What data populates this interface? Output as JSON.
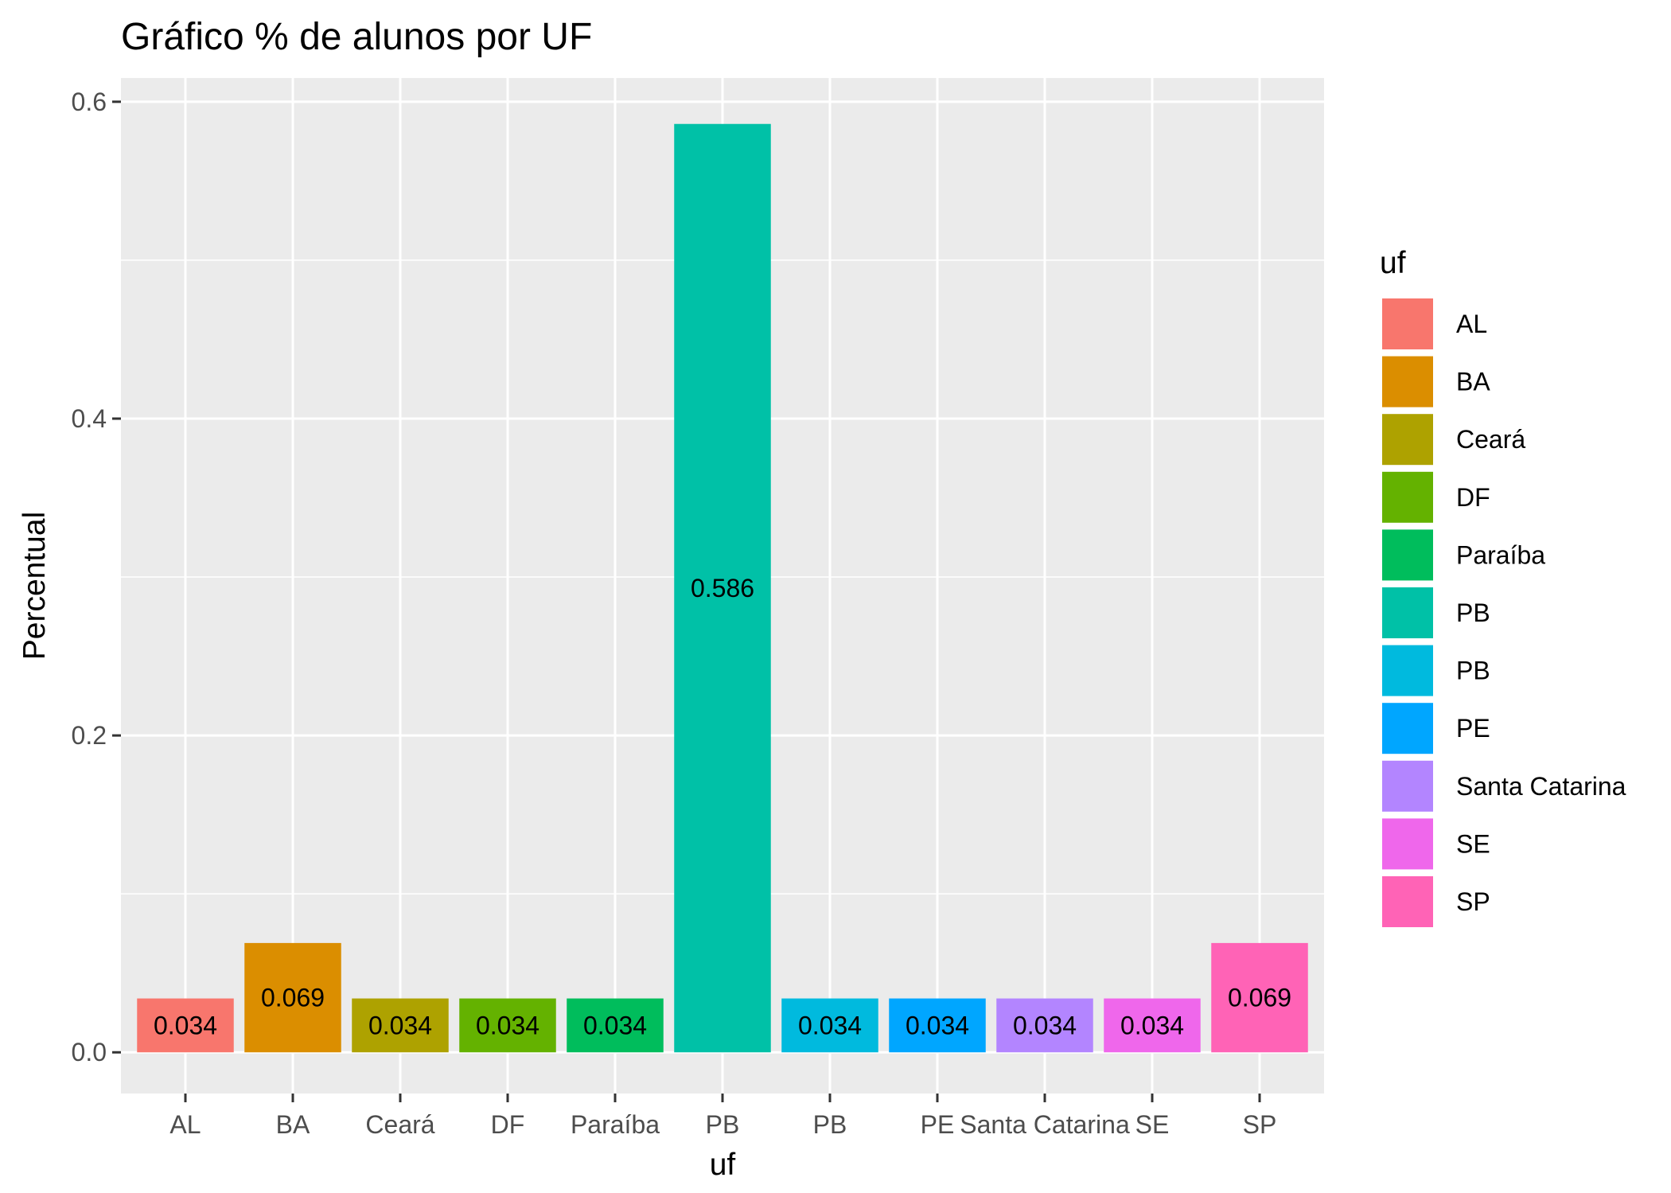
{
  "chart_data": {
    "type": "bar",
    "title": "Gráfico % de alunos por UF",
    "xlabel": "uf",
    "ylabel": "Percentual",
    "categories": [
      "AL",
      "BA",
      "Ceará",
      "DF",
      "Paraíba",
      "PB",
      "PB",
      "PE",
      "Santa Catarina",
      "SE",
      "SP"
    ],
    "values": [
      0.034,
      0.069,
      0.034,
      0.034,
      0.034,
      0.586,
      0.034,
      0.034,
      0.034,
      0.034,
      0.069
    ],
    "value_labels": [
      "0.034",
      "0.069",
      "0.034",
      "0.034",
      "0.034",
      "0.586",
      "0.034",
      "0.034",
      "0.034",
      "0.034",
      "0.069"
    ],
    "colors": [
      "#F8766D",
      "#DB8E00",
      "#AEA200",
      "#64B200",
      "#00BD5C",
      "#00C1A7",
      "#00BADE",
      "#00A6FF",
      "#B385FF",
      "#EF67EB",
      "#FF63B6"
    ],
    "ylim": [
      -0.026,
      0.615
    ],
    "yticks": [
      0.0,
      0.2,
      0.4,
      0.6
    ],
    "ytick_labels": [
      "0.0",
      "0.2",
      "0.4",
      "0.6"
    ],
    "grid": true,
    "panel_background": "#EBEBEB",
    "legend": {
      "title": "uf",
      "placement": "right",
      "items": [
        "AL",
        "BA",
        "Ceará",
        "DF",
        "Paraíba",
        "PB",
        "PB",
        "PE",
        "Santa Catarina",
        "SE",
        "SP"
      ]
    }
  }
}
